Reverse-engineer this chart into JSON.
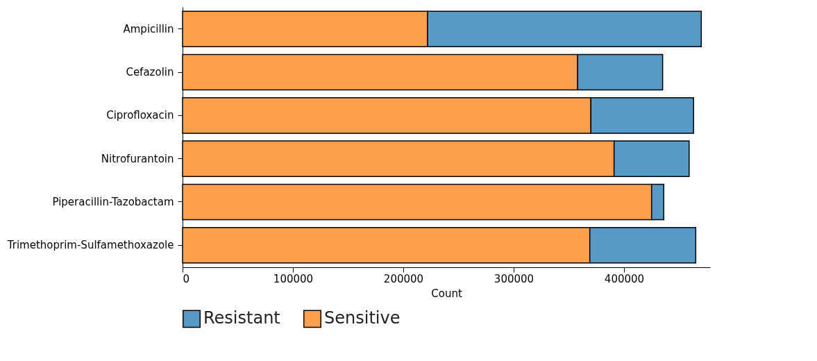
{
  "chart_data": {
    "type": "bar",
    "orientation": "horizontal",
    "stacked": true,
    "xlabel": "Count",
    "categories": [
      "Ampicillin",
      "Cefazolin",
      "Ciprofloxacin",
      "Nitrofurantoin",
      "Piperacillin-Tazobactam",
      "Trimethoprim-Sulfamethoxazole"
    ],
    "series": [
      {
        "name": "Sensitive",
        "color": "#fd9f4c",
        "values": [
          222000,
          358000,
          370000,
          391000,
          425000,
          369000
        ]
      },
      {
        "name": "Resistant",
        "color": "#5799c7",
        "values": [
          248000,
          77000,
          93000,
          68000,
          11000,
          96000
        ]
      }
    ],
    "xlim": [
      0,
      478000
    ],
    "xticks": [
      0,
      100000,
      200000,
      300000,
      400000
    ],
    "grid": false,
    "legend": "bottom"
  }
}
